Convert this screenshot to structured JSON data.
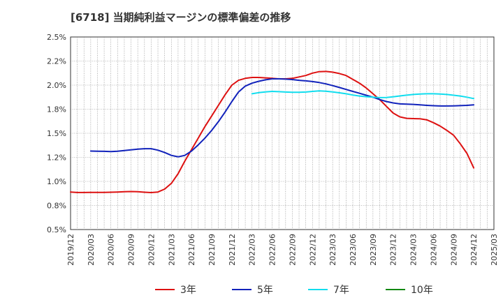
{
  "chart_data": {
    "type": "line",
    "title": "[6718]  当期純利益マージンの標準偏差の推移",
    "xlabel": "",
    "ylabel": "",
    "ylim": [
      0.5,
      2.5
    ],
    "y_ticks": [
      "0.5%",
      "0.8%",
      "1.0%",
      "1.2%",
      "1.5%",
      "1.8%",
      "2.0%",
      "2.2%",
      "2.5%"
    ],
    "y_tick_values": [
      0.5,
      0.75,
      1.0,
      1.25,
      1.5,
      1.75,
      2.0,
      2.25,
      2.5
    ],
    "x_ticks": [
      "2019/12",
      "2020/03",
      "2020/06",
      "2020/09",
      "2020/12",
      "2021/03",
      "2021/06",
      "2021/09",
      "2021/12",
      "2022/03",
      "2022/06",
      "2022/09",
      "2022/12",
      "2023/03",
      "2023/06",
      "2023/09",
      "2023/12",
      "2024/03",
      "2024/06",
      "2024/09",
      "2024/12",
      "2025/03"
    ],
    "grid": true,
    "legend_position": "bottom",
    "series": [
      {
        "name": "3年",
        "color": "#dd1111",
        "points": [
          [
            "2019/12",
            0.89
          ],
          [
            "2020/01",
            0.885
          ],
          [
            "2020/02",
            0.885
          ],
          [
            "2020/03",
            0.886
          ],
          [
            "2020/04",
            0.886
          ],
          [
            "2020/05",
            0.886
          ],
          [
            "2020/06",
            0.888
          ],
          [
            "2020/07",
            0.89
          ],
          [
            "2020/08",
            0.893
          ],
          [
            "2020/09",
            0.895
          ],
          [
            "2020/10",
            0.893
          ],
          [
            "2020/11",
            0.888
          ],
          [
            "2020/12",
            0.884
          ],
          [
            "2021/01",
            0.89
          ],
          [
            "2021/02",
            0.92
          ],
          [
            "2021/03",
            0.98
          ],
          [
            "2021/04",
            1.08
          ],
          [
            "2021/05",
            1.21
          ],
          [
            "2021/06",
            1.33
          ],
          [
            "2021/07",
            1.45
          ],
          [
            "2021/08",
            1.57
          ],
          [
            "2021/09",
            1.68
          ],
          [
            "2021/10",
            1.79
          ],
          [
            "2021/11",
            1.9
          ],
          [
            "2021/12",
            2.0
          ],
          [
            "2022/01",
            2.05
          ],
          [
            "2022/02",
            2.07
          ],
          [
            "2022/03",
            2.08
          ],
          [
            "2022/04",
            2.08
          ],
          [
            "2022/05",
            2.075
          ],
          [
            "2022/06",
            2.07
          ],
          [
            "2022/07",
            2.065
          ],
          [
            "2022/08",
            2.065
          ],
          [
            "2022/09",
            2.07
          ],
          [
            "2022/10",
            2.085
          ],
          [
            "2022/11",
            2.1
          ],
          [
            "2022/12",
            2.125
          ],
          [
            "2023/01",
            2.14
          ],
          [
            "2023/02",
            2.142
          ],
          [
            "2023/03",
            2.135
          ],
          [
            "2023/04",
            2.12
          ],
          [
            "2023/05",
            2.1
          ],
          [
            "2023/06",
            2.06
          ],
          [
            "2023/07",
            2.02
          ],
          [
            "2023/08",
            1.97
          ],
          [
            "2023/09",
            1.91
          ],
          [
            "2023/10",
            1.85
          ],
          [
            "2023/11",
            1.78
          ],
          [
            "2023/12",
            1.71
          ],
          [
            "2024/01",
            1.67
          ],
          [
            "2024/02",
            1.655
          ],
          [
            "2024/03",
            1.652
          ],
          [
            "2024/04",
            1.65
          ],
          [
            "2024/05",
            1.64
          ],
          [
            "2024/06",
            1.61
          ],
          [
            "2024/07",
            1.575
          ],
          [
            "2024/08",
            1.53
          ],
          [
            "2024/09",
            1.48
          ],
          [
            "2024/10",
            1.39
          ],
          [
            "2024/11",
            1.29
          ],
          [
            "2024/12",
            1.14
          ]
        ]
      },
      {
        "name": "5年",
        "color": "#1122bb",
        "points": [
          [
            "2020/03",
            1.315
          ],
          [
            "2020/04",
            1.314
          ],
          [
            "2020/05",
            1.312
          ],
          [
            "2020/06",
            1.31
          ],
          [
            "2020/07",
            1.313
          ],
          [
            "2020/08",
            1.32
          ],
          [
            "2020/09",
            1.328
          ],
          [
            "2020/10",
            1.335
          ],
          [
            "2020/11",
            1.34
          ],
          [
            "2020/12",
            1.34
          ],
          [
            "2021/01",
            1.325
          ],
          [
            "2021/02",
            1.3
          ],
          [
            "2021/03",
            1.27
          ],
          [
            "2021/04",
            1.255
          ],
          [
            "2021/05",
            1.27
          ],
          [
            "2021/06",
            1.315
          ],
          [
            "2021/07",
            1.38
          ],
          [
            "2021/08",
            1.45
          ],
          [
            "2021/09",
            1.53
          ],
          [
            "2021/10",
            1.62
          ],
          [
            "2021/11",
            1.72
          ],
          [
            "2021/12",
            1.83
          ],
          [
            "2022/01",
            1.93
          ],
          [
            "2022/02",
            1.99
          ],
          [
            "2022/03",
            2.02
          ],
          [
            "2022/04",
            2.04
          ],
          [
            "2022/05",
            2.055
          ],
          [
            "2022/06",
            2.065
          ],
          [
            "2022/07",
            2.065
          ],
          [
            "2022/08",
            2.062
          ],
          [
            "2022/09",
            2.058
          ],
          [
            "2022/10",
            2.05
          ],
          [
            "2022/11",
            2.044
          ],
          [
            "2022/12",
            2.037
          ],
          [
            "2023/01",
            2.027
          ],
          [
            "2023/02",
            2.013
          ],
          [
            "2023/03",
            1.995
          ],
          [
            "2023/04",
            1.975
          ],
          [
            "2023/05",
            1.955
          ],
          [
            "2023/06",
            1.935
          ],
          [
            "2023/07",
            1.915
          ],
          [
            "2023/08",
            1.895
          ],
          [
            "2023/09",
            1.875
          ],
          [
            "2023/10",
            1.85
          ],
          [
            "2023/11",
            1.83
          ],
          [
            "2023/12",
            1.815
          ],
          [
            "2024/01",
            1.805
          ],
          [
            "2024/02",
            1.802
          ],
          [
            "2024/03",
            1.8
          ],
          [
            "2024/04",
            1.795
          ],
          [
            "2024/05",
            1.79
          ],
          [
            "2024/06",
            1.786
          ],
          [
            "2024/07",
            1.783
          ],
          [
            "2024/08",
            1.783
          ],
          [
            "2024/09",
            1.785
          ],
          [
            "2024/10",
            1.787
          ],
          [
            "2024/11",
            1.79
          ],
          [
            "2024/12",
            1.795
          ]
        ]
      },
      {
        "name": "7年",
        "color": "#11ddee",
        "points": [
          [
            "2022/03",
            1.91
          ],
          [
            "2022/04",
            1.922
          ],
          [
            "2022/05",
            1.93
          ],
          [
            "2022/06",
            1.935
          ],
          [
            "2022/07",
            1.932
          ],
          [
            "2022/08",
            1.928
          ],
          [
            "2022/09",
            1.925
          ],
          [
            "2022/10",
            1.925
          ],
          [
            "2022/11",
            1.928
          ],
          [
            "2022/12",
            1.935
          ],
          [
            "2023/01",
            1.94
          ],
          [
            "2023/02",
            1.937
          ],
          [
            "2023/03",
            1.93
          ],
          [
            "2023/04",
            1.92
          ],
          [
            "2023/05",
            1.91
          ],
          [
            "2023/06",
            1.897
          ],
          [
            "2023/07",
            1.887
          ],
          [
            "2023/08",
            1.88
          ],
          [
            "2023/09",
            1.875
          ],
          [
            "2023/10",
            1.87
          ],
          [
            "2023/11",
            1.872
          ],
          [
            "2023/12",
            1.878
          ],
          [
            "2024/01",
            1.888
          ],
          [
            "2024/02",
            1.896
          ],
          [
            "2024/03",
            1.903
          ],
          [
            "2024/04",
            1.908
          ],
          [
            "2024/05",
            1.91
          ],
          [
            "2024/06",
            1.91
          ],
          [
            "2024/07",
            1.907
          ],
          [
            "2024/08",
            1.903
          ],
          [
            "2024/09",
            1.895
          ],
          [
            "2024/10",
            1.887
          ],
          [
            "2024/11",
            1.875
          ],
          [
            "2024/12",
            1.86
          ]
        ]
      },
      {
        "name": "10年",
        "color": "#118811",
        "points": []
      }
    ]
  }
}
